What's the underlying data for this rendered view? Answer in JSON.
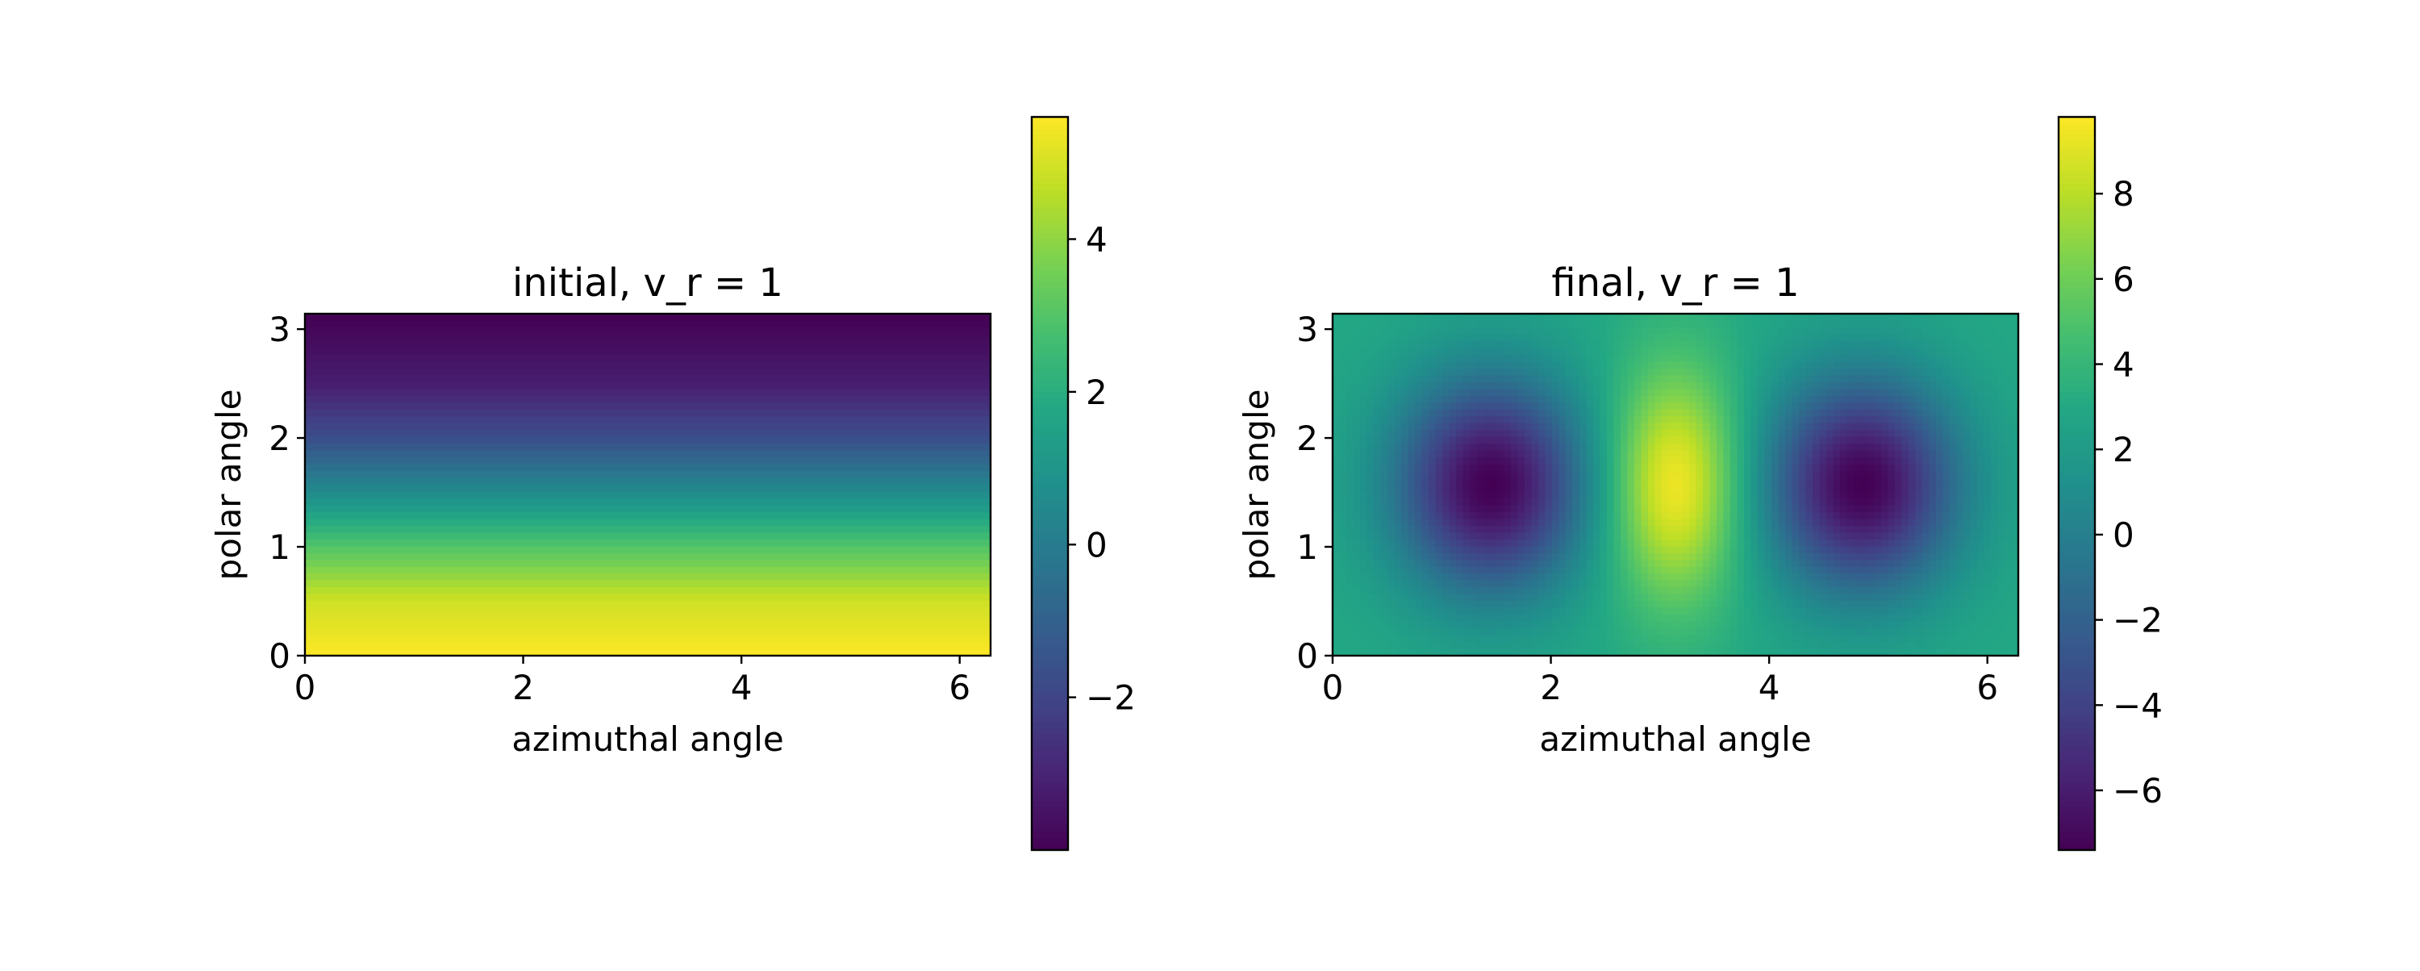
{
  "chart_data": [
    {
      "type": "heatmap",
      "title": "initial, v_r = 1",
      "xlabel": "azimuthal angle",
      "ylabel": "polar angle",
      "xlim": [
        0,
        6.2832
      ],
      "ylim": [
        0,
        3.1416
      ],
      "xticks": [
        0,
        2,
        4,
        6
      ],
      "xtick_labels": [
        "0",
        "2",
        "4",
        "6"
      ],
      "yticks": [
        0,
        1,
        2,
        3
      ],
      "ytick_labels": [
        "0",
        "1",
        "2",
        "3"
      ],
      "colormap": "viridis",
      "field": "5.6 * cos(polar angle) ... approx; varies with polar angle only, from about 5.6 at polar angle 0 to about -4 at polar angle 3.14",
      "z_by_polar_angle": {
        "polar_angle": [
          0,
          0.5,
          1.0,
          1.5,
          2.0,
          2.5,
          3.1416
        ],
        "value": [
          5.6,
          4.9,
          3.0,
          0.6,
          -1.7,
          -3.2,
          -4.0
        ]
      },
      "colorbar": {
        "range": [
          -4.0,
          5.6
        ],
        "ticks": [
          -2,
          0,
          2,
          4
        ],
        "tick_labels": [
          "−2",
          "0",
          "2",
          "4"
        ]
      },
      "grid": false
    },
    {
      "type": "heatmap",
      "title": "final, v_r = 1",
      "xlabel": "azimuthal angle",
      "ylabel": "polar angle",
      "xlim": [
        0,
        6.2832
      ],
      "ylim": [
        0,
        3.1416
      ],
      "xticks": [
        0,
        2,
        4,
        6
      ],
      "xtick_labels": [
        "0",
        "2",
        "4",
        "6"
      ],
      "yticks": [
        0,
        1,
        2,
        3
      ],
      "ytick_labels": [
        "0",
        "1",
        "2",
        "3"
      ],
      "colormap": "viridis",
      "features": [
        {
          "kind": "minimum",
          "azimuthal": 1.45,
          "polar": 1.57,
          "value": -7.4
        },
        {
          "kind": "maximum",
          "azimuthal": 3.14,
          "polar": 1.57,
          "value": 9.8
        },
        {
          "kind": "minimum",
          "azimuthal": 4.85,
          "polar": 1.57,
          "value": -7.4
        }
      ],
      "background_value": 3.0,
      "colorbar": {
        "range": [
          -7.4,
          9.8
        ],
        "ticks": [
          -6,
          -4,
          -2,
          0,
          2,
          4,
          6,
          8
        ],
        "tick_labels": [
          "−6",
          "−4",
          "−2",
          "0",
          "2",
          "4",
          "6",
          "8"
        ]
      },
      "grid": false
    }
  ]
}
